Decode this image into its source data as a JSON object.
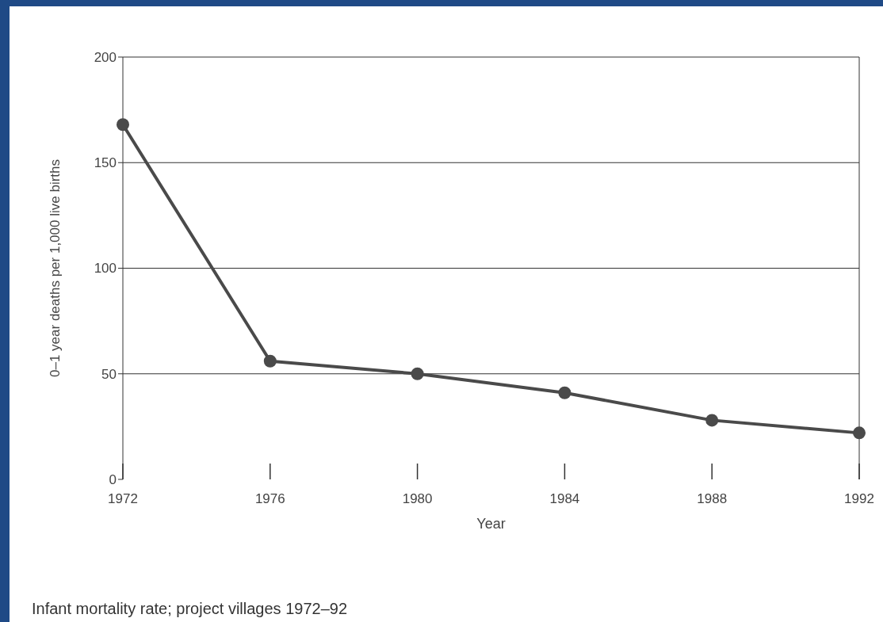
{
  "chart_data": {
    "type": "line",
    "xlabel": "Year",
    "ylabel": "0–1 year deaths per 1,000 live births",
    "x": [
      1972,
      1976,
      1980,
      1984,
      1988,
      1992
    ],
    "series": [
      {
        "color": "#4a4a4a",
        "values": [
          168,
          56,
          50,
          41,
          28,
          22
        ]
      }
    ],
    "xlim": [
      1972,
      1992
    ],
    "xticks": [
      1972,
      1976,
      1980,
      1984,
      1988,
      1992
    ],
    "ylim": [
      0,
      200
    ],
    "yticks": [
      0,
      50,
      100,
      150,
      200
    ],
    "grid": "y",
    "marker": "circle",
    "line_style": "solid",
    "annotations": [
      "Infant mortality rate; project villages 1972–92"
    ]
  }
}
